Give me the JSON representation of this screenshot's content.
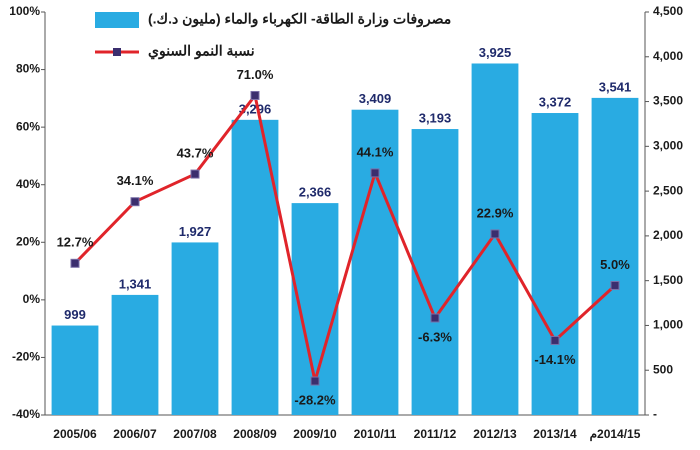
{
  "chart_data": {
    "type": "bar-line",
    "categories": [
      "2005/06",
      "2006/07",
      "2007/08",
      "2008/09",
      "2009/10",
      "2010/11",
      "2011/12",
      "2012/13",
      "2013/14",
      "2014/15م"
    ],
    "series": [
      {
        "name": "مصروفات وزارة الطاقة- الكهرباء والماء (مليون د.ك.)",
        "type": "bar",
        "axis": "y2",
        "color": "#29abe2",
        "values": [
          999,
          1341,
          1927,
          3296,
          2366,
          3409,
          3193,
          3925,
          3372,
          3541
        ],
        "value_labels": [
          "999",
          "1,341",
          "1,927",
          "3,296",
          "2,366",
          "3,409",
          "3,193",
          "3,925",
          "3,372",
          "3,541"
        ]
      },
      {
        "name": "نسبة النمو السنوي",
        "type": "line",
        "axis": "y",
        "color": "#e0242a",
        "marker_color": "#3b2e6e",
        "values": [
          12.7,
          34.1,
          43.7,
          71.0,
          -28.2,
          44.1,
          -6.3,
          22.9,
          -14.1,
          5.0
        ],
        "value_labels": [
          "12.7%",
          "34.1%",
          "43.7%",
          "71.0%",
          "-28.2%",
          "44.1%",
          "-6.3%",
          "22.9%",
          "-14.1%",
          "5.0%"
        ]
      }
    ],
    "ylim": [
      -40,
      100
    ],
    "yticks": [
      {
        "value": -40,
        "label": "-40%"
      },
      {
        "value": -20,
        "label": "-20%"
      },
      {
        "value": 0,
        "label": "0%"
      },
      {
        "value": 20,
        "label": "20%"
      },
      {
        "value": 40,
        "label": "40%"
      },
      {
        "value": 60,
        "label": "60%"
      },
      {
        "value": 80,
        "label": "80%"
      },
      {
        "value": 100,
        "label": "100%"
      }
    ],
    "y2lim": [
      0,
      4500
    ],
    "y2ticks": [
      {
        "value": 0,
        "label": "-"
      },
      500,
      {
        "value": 1000,
        "label": "1,000"
      },
      {
        "value": 1500,
        "label": "1,500"
      },
      {
        "value": 2000,
        "label": "2,000"
      },
      {
        "value": 2500,
        "label": "2,500"
      },
      {
        "value": 3000,
        "label": "3,000"
      },
      {
        "value": 3500,
        "label": "3,500"
      },
      {
        "value": 4000,
        "label": "4,000"
      },
      {
        "value": 4500,
        "label": "4,500"
      }
    ],
    "grid": false
  }
}
